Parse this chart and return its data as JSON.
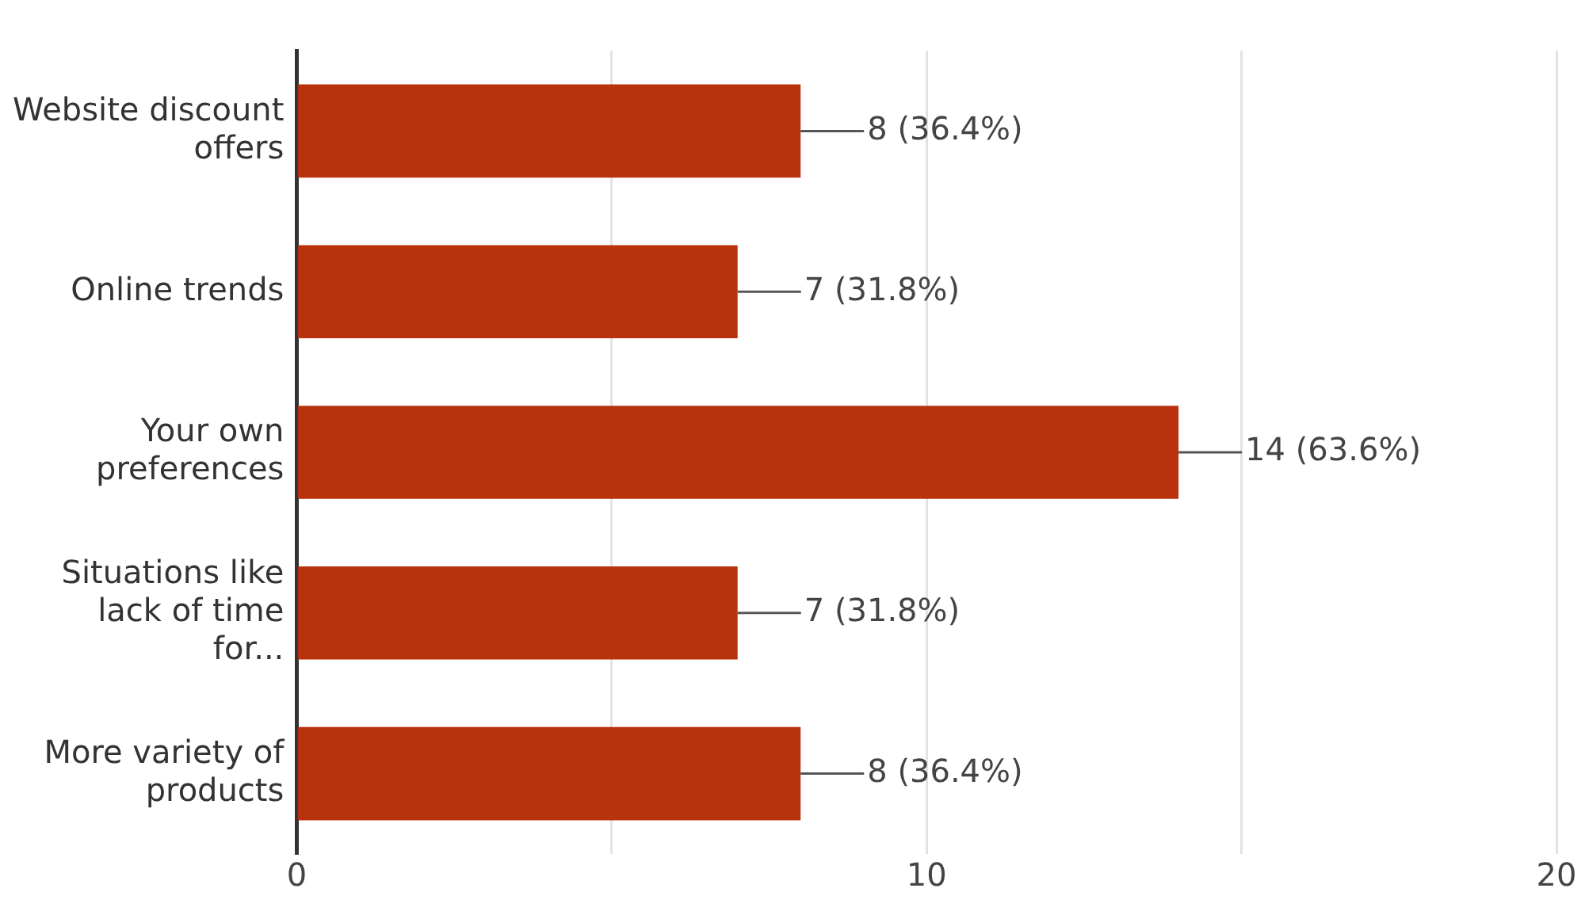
{
  "chart_data": {
    "type": "bar",
    "orientation": "horizontal",
    "categories": [
      "Website discount offers",
      "Online trends",
      "Your own preferences",
      "Situations like lack of time for...",
      "More variety of products"
    ],
    "values": [
      8,
      7,
      14,
      7,
      8
    ],
    "value_labels": [
      "8 (36.4%)",
      "7 (31.8%)",
      "14 (63.6%)",
      "7 (31.8%)",
      "8 (36.4%)"
    ],
    "color": "#b7320d",
    "xlim": [
      0,
      20
    ],
    "xticks": [
      0,
      {
        "value": 5,
        "label": null
      },
      10,
      {
        "value": 15,
        "label": null
      },
      20
    ],
    "grid": "x",
    "legend": false
  }
}
